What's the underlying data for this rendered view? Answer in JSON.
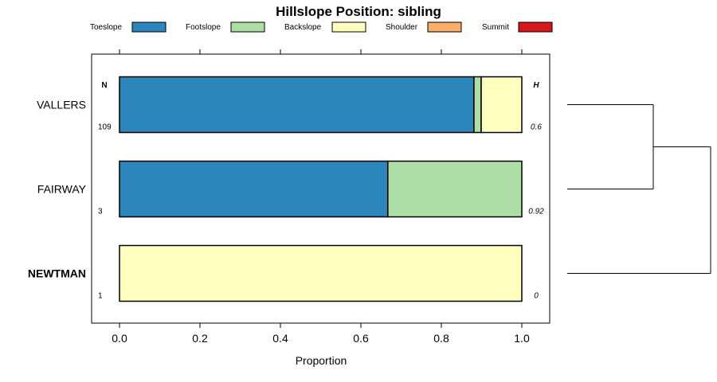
{
  "chart_data": {
    "type": "bar",
    "orientation": "horizontal",
    "stacked": true,
    "title": "Hillslope Position: sibling",
    "xlabel": "Proportion",
    "ylabel": "",
    "xlim": [
      -0.07,
      1.07
    ],
    "xticks": [
      "0.0",
      "0.2",
      "0.4",
      "0.6",
      "0.8",
      "1.0"
    ],
    "xtick_values": [
      0,
      0.2,
      0.4,
      0.6,
      0.8,
      1.0
    ],
    "grid": false,
    "legend_position": "top",
    "n_header": "N",
    "h_header": "H",
    "series": [
      {
        "name": "Toeslope",
        "color": "#2c85bb"
      },
      {
        "name": "Footslope",
        "color": "#addea5"
      },
      {
        "name": "Backslope",
        "color": "#ffffc0"
      },
      {
        "name": "Shoulder",
        "color": "#fcad68"
      },
      {
        "name": "Summit",
        "color": "#d7191c"
      }
    ],
    "categories": [
      {
        "label": "VALLERS",
        "bold": false,
        "n": "109",
        "h": "0.6",
        "values": [
          0.881,
          0.018,
          0.101,
          0,
          0
        ]
      },
      {
        "label": "FAIRWAY",
        "bold": false,
        "n": "3",
        "h": "0.92",
        "values": [
          0.667,
          0.333,
          0,
          0,
          0
        ]
      },
      {
        "label": "NEWTMAN",
        "bold": true,
        "n": "1",
        "h": "0",
        "values": [
          0,
          0,
          1.0,
          0,
          0
        ]
      }
    ],
    "dendrogram": {
      "leaves": [
        "VALLERS",
        "FAIRWAY",
        "NEWTMAN"
      ],
      "merges": [
        {
          "left": "VALLERS",
          "right": "FAIRWAY",
          "height": 0.6
        },
        {
          "left": "VALLERS+FAIRWAY",
          "right": "NEWTMAN",
          "height": 1.0
        }
      ]
    }
  }
}
